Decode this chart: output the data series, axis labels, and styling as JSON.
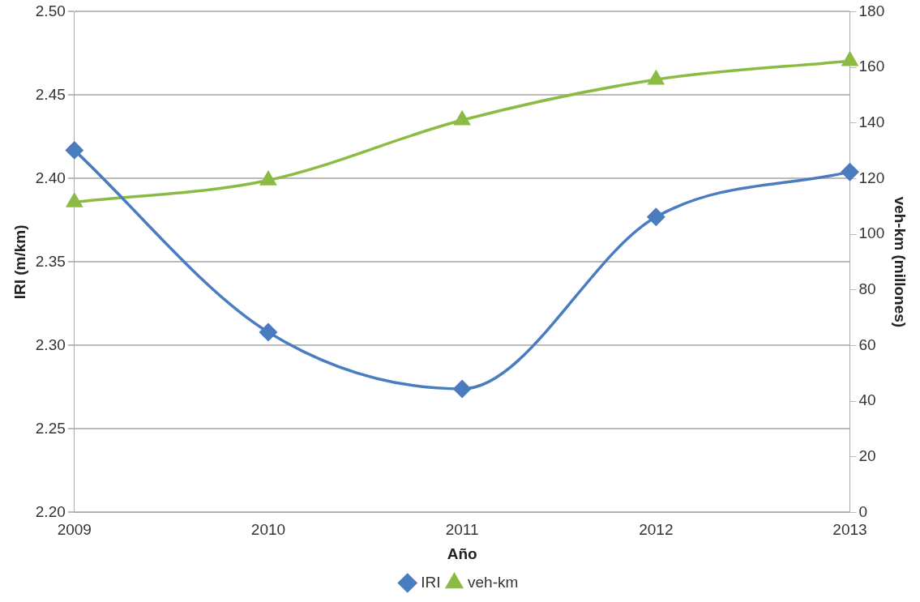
{
  "chart_data": {
    "type": "line",
    "xlabel": "Año",
    "ylabel": "IRI (m/km)",
    "y2label": "veh-km (millones)",
    "categories": [
      "2009",
      "2010",
      "2011",
      "2012",
      "2013"
    ],
    "series": [
      {
        "name": "IRI",
        "color": "#4a7cc0",
        "marker": "diamond",
        "values": [
          2.417,
          2.308,
          2.274,
          2.377,
          2.404
        ]
      },
      {
        "name": "veh-km",
        "color": "#8cbb44",
        "marker": "triangle",
        "axis": "y2",
        "values": [
          111.5,
          119.4,
          141,
          155.6,
          162.3
        ]
      }
    ],
    "ylim": [
      2.2,
      2.5
    ],
    "yticks": [
      {
        "value": 2.2,
        "label": "2.20"
      },
      {
        "value": 2.25,
        "label": "2.25"
      },
      {
        "value": 2.3,
        "label": "2.30"
      },
      {
        "value": 2.35,
        "label": "2.35"
      },
      {
        "value": 2.4,
        "label": "2.40"
      },
      {
        "value": 2.45,
        "label": "2.45"
      },
      {
        "value": 2.5,
        "label": "2.50"
      }
    ],
    "y2lim": [
      0,
      180
    ],
    "y2ticks": [
      0,
      20,
      40,
      60,
      80,
      100,
      120,
      140,
      160,
      180
    ],
    "grid": "y",
    "legend": "bottom"
  }
}
